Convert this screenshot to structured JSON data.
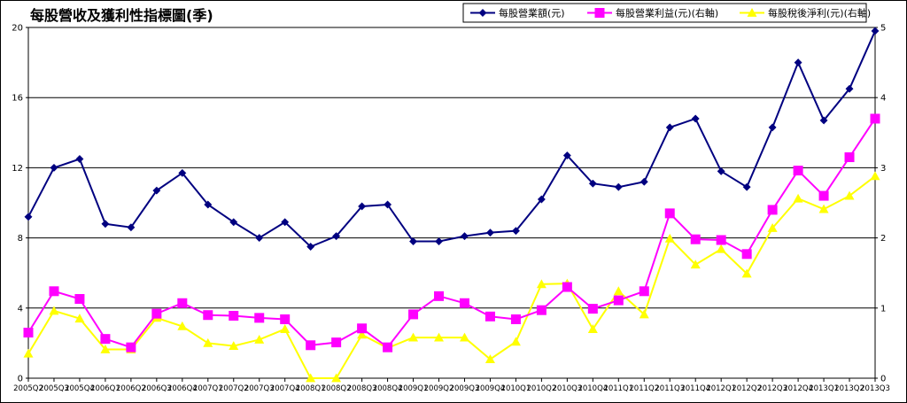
{
  "chart_data": {
    "type": "line",
    "title": "每股營收及獲利性指標圖(季)",
    "categories": [
      "2005Q2",
      "2005Q3",
      "2005Q4",
      "2006Q1",
      "2006Q2",
      "2006Q3",
      "2006Q4",
      "2007Q1",
      "2007Q2",
      "2007Q3",
      "2007Q4",
      "2008Q1",
      "2008Q2",
      "2008Q3",
      "2008Q4",
      "2009Q1",
      "2009Q2",
      "2009Q3",
      "2009Q4",
      "2010Q1",
      "2010Q2",
      "2010Q3",
      "2010Q4",
      "2011Q1",
      "2011Q2",
      "2011Q3",
      "2011Q4",
      "2012Q1",
      "2012Q2",
      "2012Q3",
      "2012Q4",
      "2013Q1",
      "2013Q2",
      "2013Q3"
    ],
    "y_left": {
      "ylim": [
        0,
        20
      ],
      "ticks": [
        "0",
        "4",
        "8",
        "12",
        "16",
        "20"
      ]
    },
    "y_right": {
      "ylim": [
        0,
        5
      ],
      "ticks": [
        "0",
        "1",
        "2",
        "3",
        "4",
        "5"
      ]
    },
    "grid": true,
    "legend_position": "top-right",
    "series": [
      {
        "name": "每股營業額(元)",
        "axis": "left",
        "color": "#000080",
        "marker": "diamond",
        "values": [
          9.2,
          12.0,
          12.5,
          8.8,
          8.6,
          10.7,
          11.7,
          9.9,
          8.9,
          8.0,
          8.9,
          7.5,
          8.1,
          9.8,
          9.9,
          7.8,
          7.8,
          8.1,
          8.3,
          8.4,
          10.2,
          12.7,
          11.1,
          10.9,
          11.2,
          14.3,
          14.8,
          11.8,
          10.9,
          14.3,
          18.0,
          14.7,
          16.5,
          19.8
        ]
      },
      {
        "name": "每股營業利益(元)(右軸)",
        "axis": "right",
        "color": "#FF00FF",
        "marker": "square",
        "values": [
          0.65,
          1.24,
          1.13,
          0.56,
          0.44,
          0.92,
          1.07,
          0.9,
          0.89,
          0.86,
          0.84,
          0.47,
          0.51,
          0.71,
          0.44,
          0.91,
          1.17,
          1.07,
          0.88,
          0.84,
          0.97,
          1.3,
          0.99,
          1.11,
          1.24,
          2.35,
          1.98,
          1.97,
          1.77,
          2.4,
          2.96,
          2.6,
          3.15,
          3.7
        ]
      },
      {
        "name": "每股稅後淨利(元)(右軸)",
        "axis": "right",
        "color": "#FFFF00",
        "marker": "triangle",
        "values": [
          0.35,
          0.96,
          0.85,
          0.41,
          0.41,
          0.86,
          0.74,
          0.5,
          0.46,
          0.55,
          0.7,
          0.0,
          0.0,
          0.62,
          0.43,
          0.58,
          0.58,
          0.58,
          0.27,
          0.52,
          1.34,
          1.35,
          0.7,
          1.24,
          0.91,
          1.99,
          1.62,
          1.84,
          1.49,
          2.14,
          2.56,
          2.41,
          2.6,
          2.88
        ]
      }
    ]
  }
}
